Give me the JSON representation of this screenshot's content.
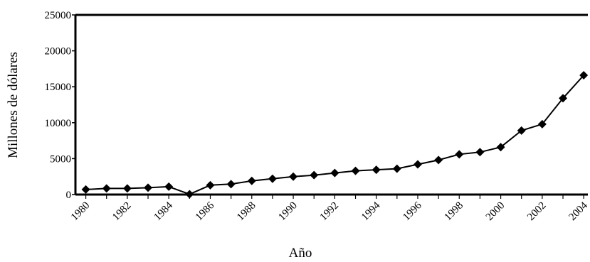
{
  "chart_data": {
    "type": "line",
    "title": "",
    "xlabel": "Año",
    "ylabel": "Millones de dólares",
    "ylim": [
      0,
      25000
    ],
    "xlim": [
      1980,
      2004
    ],
    "yticks": [
      0,
      5000,
      10000,
      15000,
      20000,
      25000
    ],
    "yticklabels": [
      "0",
      "5000",
      "10000",
      "15000",
      "20000",
      "25000"
    ],
    "xticks": [
      1980,
      1982,
      1984,
      1986,
      1988,
      1990,
      1992,
      1994,
      1996,
      1998,
      2000,
      2002,
      2004
    ],
    "xticklabels": [
      "1980",
      "1982",
      "1984",
      "1986",
      "1988",
      "1990",
      "1992",
      "1994",
      "1996",
      "1998",
      "2000",
      "2002",
      "2004"
    ],
    "grid": false,
    "legend": "none",
    "line_color": "#000000",
    "marker": "diamond",
    "series": [
      {
        "x": [
          1980,
          1981,
          1982,
          1983,
          1984,
          1985,
          1986,
          1987,
          1988,
          1989,
          1990,
          1991,
          1992,
          1993,
          1994,
          1995,
          1996,
          1997,
          1998,
          1999,
          2000,
          2001,
          2002,
          2003,
          2004
        ],
        "values": [
          700,
          850,
          850,
          950,
          1100,
          50,
          1300,
          1450,
          1900,
          2200,
          2500,
          2700,
          3000,
          3300,
          3450,
          3600,
          4200,
          4800,
          5600,
          5900,
          6600,
          8900,
          9800,
          13400,
          16600
        ]
      }
    ]
  }
}
